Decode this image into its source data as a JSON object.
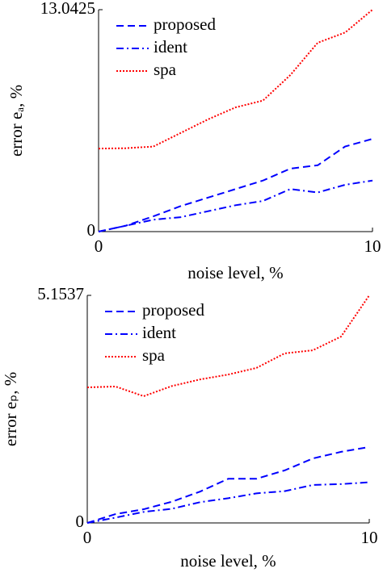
{
  "chart_data": [
    {
      "type": "line",
      "xlabel": "noise level, %",
      "ylabel": "error eₐ, %",
      "x": [
        0,
        1,
        2,
        3,
        4,
        5,
        6,
        7,
        8,
        9,
        10
      ],
      "xlim": [
        0,
        10
      ],
      "xticks": [
        0,
        10
      ],
      "ylim": [
        0,
        13.0425
      ],
      "yticks": [
        0,
        13.0425
      ],
      "legend": "upper left",
      "series": [
        {
          "name": "proposed",
          "color": "#0000ff",
          "linestyle": "dashed",
          "values": [
            0,
            0.35,
            0.9,
            1.5,
            2.0,
            2.5,
            3.0,
            3.7,
            3.9,
            5.0,
            5.45
          ]
        },
        {
          "name": "ident",
          "color": "#0000ff",
          "linestyle": "dashdot",
          "values": [
            0,
            0.35,
            0.7,
            0.85,
            1.2,
            1.55,
            1.8,
            2.5,
            2.3,
            2.75,
            3.0
          ]
        },
        {
          "name": "spa",
          "color": "#ff0000",
          "linestyle": "dotted",
          "values": [
            4.88,
            4.9,
            5.0,
            5.8,
            6.6,
            7.3,
            7.7,
            9.2,
            11.1,
            11.7,
            13.0425
          ]
        }
      ]
    },
    {
      "type": "line",
      "xlabel": "noise level, %",
      "ylabel": "error eₚ, %",
      "x": [
        0,
        1,
        2,
        3,
        4,
        5,
        6,
        7,
        8,
        9,
        10
      ],
      "xlim": [
        0,
        10
      ],
      "xticks": [
        0,
        10
      ],
      "ylim": [
        0,
        5.1537
      ],
      "yticks": [
        0,
        5.1537
      ],
      "legend": "upper left",
      "series": [
        {
          "name": "proposed",
          "color": "#0000ff",
          "linestyle": "dashed",
          "values": [
            0,
            0.2,
            0.31,
            0.48,
            0.71,
            1.0,
            1.0,
            1.19,
            1.46,
            1.61,
            1.72
          ]
        },
        {
          "name": "ident",
          "color": "#0000ff",
          "linestyle": "dashdot",
          "values": [
            0,
            0.12,
            0.25,
            0.32,
            0.47,
            0.56,
            0.67,
            0.72,
            0.86,
            0.88,
            0.92
          ]
        },
        {
          "name": "spa",
          "color": "#ff0000",
          "linestyle": "dotted",
          "values": [
            3.07,
            3.09,
            2.87,
            3.1,
            3.25,
            3.36,
            3.51,
            3.84,
            3.91,
            4.22,
            5.1537
          ]
        }
      ]
    }
  ]
}
